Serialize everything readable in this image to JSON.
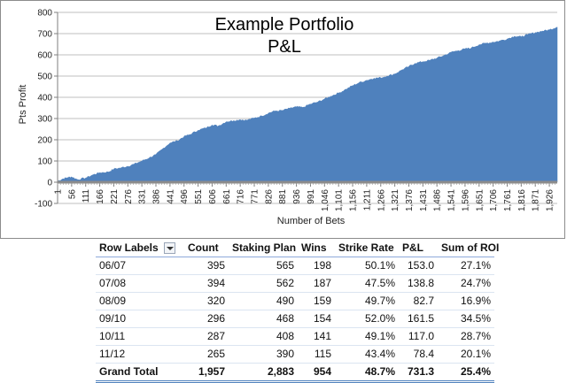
{
  "chart_data": {
    "type": "area",
    "title": "Example Portfolio P&L",
    "title_lines": [
      "Example Portfolio",
      "P&L"
    ],
    "xlabel": "Number of Bets",
    "ylabel": "Pts Profit",
    "xlim": [
      1,
      1957
    ],
    "ylim": [
      -100,
      800
    ],
    "yticks": [
      -100,
      0,
      100,
      200,
      300,
      400,
      500,
      600,
      700,
      800
    ],
    "xtick_labels": [
      "1",
      "56",
      "111",
      "166",
      "221",
      "276",
      "331",
      "386",
      "441",
      "496",
      "551",
      "606",
      "661",
      "716",
      "771",
      "826",
      "881",
      "936",
      "991",
      "1,046",
      "1,101",
      "1,156",
      "1,211",
      "1,266",
      "1,321",
      "1,376",
      "1,431",
      "1,486",
      "1,541",
      "1,596",
      "1,651",
      "1,706",
      "1,761",
      "1,816",
      "1,871",
      "1,926"
    ],
    "grid": true,
    "legend": "none",
    "fill_color": "#4f81bd",
    "series": [
      {
        "x": [
          1,
          20,
          40,
          56,
          80,
          111,
          140,
          166,
          200,
          221,
          250,
          276,
          300,
          331,
          360,
          386,
          410,
          441,
          470,
          496,
          520,
          551,
          580,
          606,
          630,
          661,
          690,
          716,
          740,
          771,
          800,
          826,
          850,
          881,
          910,
          936,
          960,
          991,
          1020,
          1046,
          1070,
          1101,
          1130,
          1156,
          1180,
          1211,
          1240,
          1266,
          1290,
          1321,
          1350,
          1376,
          1400,
          1431,
          1460,
          1486,
          1510,
          1541,
          1570,
          1596,
          1620,
          1651,
          1680,
          1706,
          1730,
          1761,
          1790,
          1816,
          1840,
          1871,
          1900,
          1926,
          1957
        ],
        "values": [
          5,
          15,
          22,
          25,
          12,
          20,
          35,
          45,
          48,
          62,
          68,
          75,
          85,
          100,
          115,
          130,
          155,
          185,
          195,
          215,
          225,
          245,
          255,
          270,
          265,
          285,
          290,
          295,
          292,
          302,
          312,
          325,
          335,
          338,
          348,
          355,
          352,
          368,
          378,
          392,
          405,
          420,
          438,
          455,
          468,
          480,
          490,
          492,
          500,
          510,
          530,
          545,
          560,
          568,
          575,
          585,
          595,
          612,
          620,
          628,
          632,
          648,
          655,
          660,
          665,
          675,
          688,
          685,
          695,
          705,
          712,
          718,
          731
        ]
      }
    ]
  },
  "table": {
    "headers": [
      "Row Labels",
      "Count",
      "Staking Plan",
      "Wins",
      "Strike Rate",
      "P&L",
      "Sum of ROI"
    ],
    "rows": [
      [
        "06/07",
        "395",
        "565",
        "198",
        "50.1%",
        "153.0",
        "27.1%"
      ],
      [
        "07/08",
        "394",
        "562",
        "187",
        "47.5%",
        "138.8",
        "24.7%"
      ],
      [
        "08/09",
        "320",
        "490",
        "159",
        "49.7%",
        "82.7",
        "16.9%"
      ],
      [
        "09/10",
        "296",
        "468",
        "154",
        "52.0%",
        "161.5",
        "34.5%"
      ],
      [
        "10/11",
        "287",
        "408",
        "141",
        "49.1%",
        "117.0",
        "28.7%"
      ],
      [
        "11/12",
        "265",
        "390",
        "115",
        "43.4%",
        "78.4",
        "20.1%"
      ]
    ],
    "total": [
      "Grand Total",
      "1,957",
      "2,883",
      "954",
      "48.7%",
      "731.3",
      "25.4%"
    ]
  }
}
